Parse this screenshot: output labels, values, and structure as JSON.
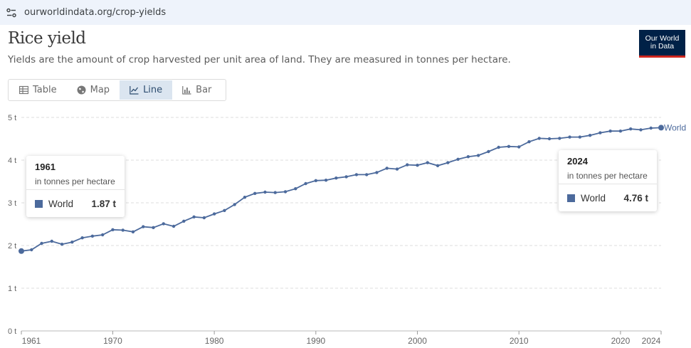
{
  "browser": {
    "url": "ourworldindata.org/crop-yields"
  },
  "header": {
    "title": "Rice yield",
    "subtitle": "Yields are the amount of crop harvested per unit area of land. They are measured in tonnes per hectare.",
    "logo_line1": "Our World",
    "logo_line2": "in Data"
  },
  "tabs": [
    {
      "label": "Table",
      "icon": "table-icon"
    },
    {
      "label": "Map",
      "icon": "globe-icon"
    },
    {
      "label": "Line",
      "icon": "line-chart-icon",
      "active": true
    },
    {
      "label": "Bar",
      "icon": "bar-chart-icon"
    }
  ],
  "tooltips": {
    "left": {
      "year": "1961",
      "unit": "in tonnes per hectare",
      "series": "World",
      "value": "1.87 t"
    },
    "right": {
      "year": "2024",
      "unit": "in tonnes per hectare",
      "series": "World",
      "value": "4.76 t"
    }
  },
  "colors": {
    "series": "#4c6a9c",
    "logo_bg": "#002147",
    "logo_accent": "#ce261e",
    "active_tab": "#dbe5f0"
  },
  "chart_data": {
    "type": "line",
    "title": "Rice yield",
    "ylabel": "",
    "xlabel": "",
    "ylim": [
      0,
      5
    ],
    "xlim": [
      1961,
      2024
    ],
    "grid": "horizontal dashed",
    "y_ticks": [
      "0 t",
      "1 t",
      "2 t",
      "3 t",
      "4 t",
      "5 t"
    ],
    "y_tick_values": [
      0,
      1,
      2,
      3,
      4,
      5
    ],
    "x_ticks": [
      "1961",
      "1970",
      "1980",
      "1990",
      "2000",
      "2010",
      "2020",
      "2024"
    ],
    "x_tick_values": [
      1961,
      1970,
      1980,
      1990,
      2000,
      2010,
      2020,
      2024
    ],
    "series": [
      {
        "name": "World",
        "x": [
          1961,
          1962,
          1963,
          1964,
          1965,
          1966,
          1967,
          1968,
          1969,
          1970,
          1971,
          1972,
          1973,
          1974,
          1975,
          1976,
          1977,
          1978,
          1979,
          1980,
          1981,
          1982,
          1983,
          1984,
          1985,
          1986,
          1987,
          1988,
          1989,
          1990,
          1991,
          1992,
          1993,
          1994,
          1995,
          1996,
          1997,
          1998,
          1999,
          2000,
          2001,
          2002,
          2003,
          2004,
          2005,
          2006,
          2007,
          2008,
          2009,
          2010,
          2011,
          2012,
          2013,
          2014,
          2015,
          2016,
          2017,
          2018,
          2019,
          2020,
          2021,
          2022,
          2023,
          2024
        ],
        "values": [
          1.87,
          1.9,
          2.05,
          2.1,
          2.03,
          2.08,
          2.18,
          2.22,
          2.25,
          2.37,
          2.36,
          2.32,
          2.44,
          2.42,
          2.51,
          2.45,
          2.57,
          2.67,
          2.65,
          2.74,
          2.82,
          2.96,
          3.13,
          3.22,
          3.25,
          3.24,
          3.26,
          3.33,
          3.45,
          3.52,
          3.53,
          3.58,
          3.61,
          3.66,
          3.66,
          3.71,
          3.81,
          3.79,
          3.89,
          3.88,
          3.94,
          3.87,
          3.94,
          4.02,
          4.08,
          4.11,
          4.2,
          4.3,
          4.32,
          4.31,
          4.43,
          4.51,
          4.5,
          4.51,
          4.54,
          4.54,
          4.58,
          4.64,
          4.68,
          4.68,
          4.73,
          4.71,
          4.75,
          4.76
        ]
      }
    ]
  }
}
